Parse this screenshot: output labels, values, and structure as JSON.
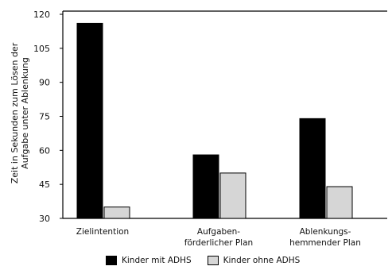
{
  "chart_data": {
    "type": "bar",
    "categories": [
      [
        "Zielintention"
      ],
      [
        "Aufgaben-",
        "förderlicher Plan"
      ],
      [
        "Ablenkungs-",
        "hemmender Plan"
      ]
    ],
    "series": [
      {
        "name": "Kinder mit ADHS",
        "values": [
          116,
          58,
          74
        ],
        "color": "#000000"
      },
      {
        "name": "Kinder ohne ADHS",
        "values": [
          35,
          50,
          44
        ],
        "color": "#d6d6d6"
      }
    ],
    "ylabel": [
      "Zeit in Sekunden zum Lösen der",
      "Aufgabe unter Ablenkung"
    ],
    "ylim": [
      30,
      120
    ],
    "yticks": [
      30,
      45,
      60,
      75,
      90,
      105,
      120
    ],
    "grid": false,
    "legend_position": "bottom"
  }
}
